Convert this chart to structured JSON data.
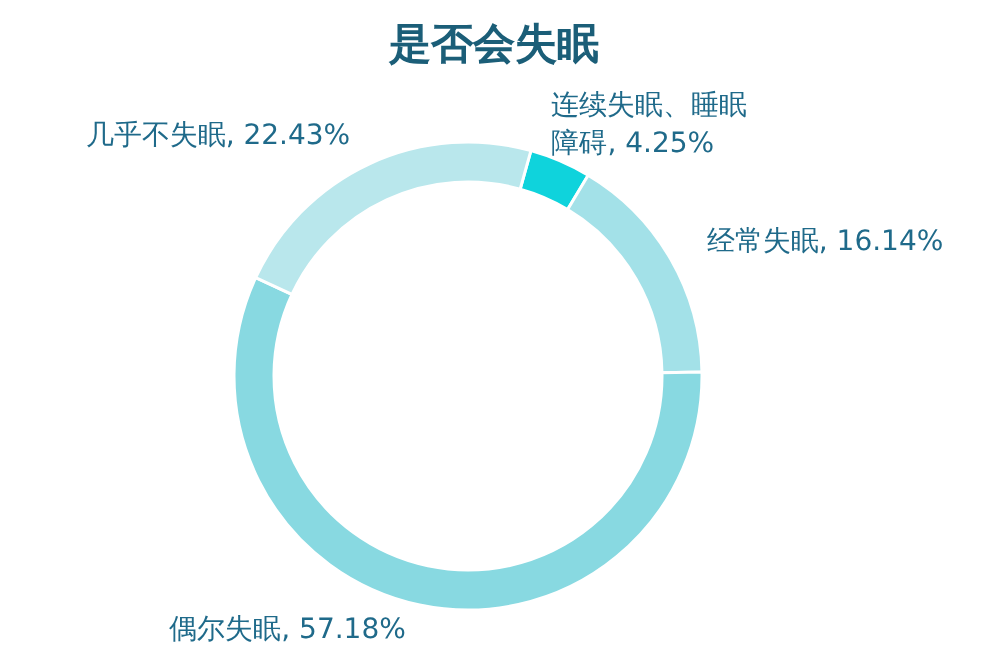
{
  "chart_data": {
    "type": "donut",
    "title": "是否会失眠",
    "categories": [
      "连续失眠、睡眠障碍",
      "经常失眠",
      "偶尔失眠",
      "几乎不失眠"
    ],
    "values": [
      4.25,
      16.14,
      57.18,
      22.43
    ],
    "value_labels": [
      "4.25%",
      "16.14%",
      "57.18%",
      "22.43%"
    ],
    "colors": [
      "#0fd3dc",
      "#a3e1e8",
      "#88d9e1",
      "#b9e7ec"
    ]
  }
}
